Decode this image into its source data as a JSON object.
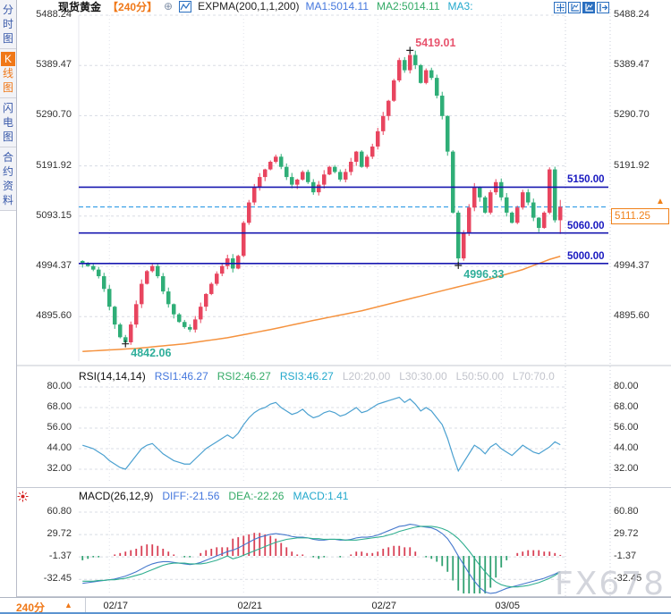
{
  "header": {
    "symbol": "现货黄金",
    "period": "【240分】",
    "indicator": "EXPMA(200,1,1,200)",
    "ma_labels": [
      {
        "text": "MA1:5014.11",
        "color": "#4477dd"
      },
      {
        "text": "MA2:5014.11",
        "color": "#33aa66"
      },
      {
        "text": "MA3:",
        "color": "#22a8cc"
      }
    ]
  },
  "icons": {
    "add_indicator": "⊕",
    "period_arrow": "▲",
    "price_arrow": "▲"
  },
  "sidebar": {
    "tabs": [
      {
        "label": "分时图",
        "active": false
      },
      {
        "label": "K线图",
        "active": true
      },
      {
        "label": "闪电图",
        "active": false
      },
      {
        "label": "合约资料",
        "active": false
      }
    ]
  },
  "x_axis": {
    "period_label": "240分",
    "dates": [
      "02/17",
      "02/21",
      "02/27",
      "03/05"
    ],
    "date_indices": [
      5,
      30,
      55,
      78
    ]
  },
  "watermark": "FX678",
  "chart_data": {
    "type": "candlestick+indicators",
    "main": {
      "y_axis": [
        "5488.24",
        "5389.47",
        "5290.70",
        "5191.92",
        "5093.15",
        "4994.37",
        "4895.60"
      ],
      "price_lines": [
        {
          "label": "5150.00",
          "value": 5150.0
        },
        {
          "label": "5060.00",
          "value": 5060.0
        },
        {
          "label": "5000.00",
          "value": 5000.0
        }
      ],
      "current_price": {
        "label": "5111.25",
        "value": 5111.25
      },
      "annotations": [
        {
          "text": "5419.01",
          "value": 5419.01,
          "index": 61,
          "pos": "high",
          "color": "#e8546e"
        },
        {
          "text": "4996.33",
          "value": 4996.33,
          "index": 70,
          "pos": "low",
          "color": "#2fae9a"
        },
        {
          "text": "4842.06",
          "value": 4842.06,
          "index": 8,
          "pos": "low",
          "color": "#2fae9a"
        }
      ],
      "first_open": 5005,
      "closes": [
        5000,
        4995,
        4988,
        4975,
        4950,
        4915,
        4880,
        4855,
        4845,
        4880,
        4920,
        4960,
        4985,
        4995,
        4975,
        4945,
        4920,
        4900,
        4885,
        4875,
        4870,
        4890,
        4915,
        4940,
        4960,
        4980,
        4995,
        5010,
        4990,
        5015,
        5080,
        5120,
        5150,
        5170,
        5185,
        5200,
        5210,
        5190,
        5170,
        5155,
        5165,
        5180,
        5160,
        5140,
        5155,
        5175,
        5190,
        5180,
        5165,
        5180,
        5200,
        5220,
        5190,
        5210,
        5230,
        5260,
        5290,
        5320,
        5360,
        5400,
        5380,
        5410,
        5390,
        5355,
        5380,
        5365,
        5330,
        5290,
        5220,
        5100,
        5010,
        5060,
        5110,
        5150,
        5130,
        5100,
        5140,
        5160,
        5130,
        5100,
        5080,
        5110,
        5140,
        5120,
        5090,
        5070,
        5100,
        5185,
        5085,
        5111.25
      ],
      "special_high": {
        "61": 5419.01,
        "89": 5125
      },
      "special_low": {
        "8": 4842.06,
        "70": 4996.33,
        "89": 5058
      },
      "expma_anchors": [
        [
          0,
          4827
        ],
        [
          10,
          4833
        ],
        [
          19,
          4842
        ],
        [
          27,
          4854
        ],
        [
          35,
          4870
        ],
        [
          43,
          4888
        ],
        [
          52,
          4907
        ],
        [
          60,
          4928
        ],
        [
          68,
          4949
        ],
        [
          75,
          4967
        ],
        [
          78,
          4976
        ],
        [
          82,
          4988
        ],
        [
          85,
          5000
        ],
        [
          87,
          5008
        ],
        [
          89,
          5014.11
        ]
      ]
    },
    "rsi": {
      "title": "RSI(14,14,14)",
      "labels": [
        {
          "text": "RSI1:46.27",
          "color": "#4477dd"
        },
        {
          "text": "RSI2:46.27",
          "color": "#33aa66"
        },
        {
          "text": "RSI3:46.27",
          "color": "#22a8cc"
        },
        {
          "text": "L20:20.00",
          "color": "#c2c4cc"
        },
        {
          "text": "L30:30.00",
          "color": "#c2c4cc"
        },
        {
          "text": "L50:50.00",
          "color": "#c2c4cc"
        },
        {
          "text": "L70:70.0",
          "color": "#c2c4cc"
        }
      ],
      "y_axis": [
        "80.00",
        "68.00",
        "56.00",
        "44.00",
        "32.00"
      ],
      "values": [
        46,
        45,
        44,
        42,
        40,
        37,
        35,
        33,
        32,
        36,
        40,
        44,
        46,
        47,
        44,
        41,
        39,
        37,
        36,
        35,
        35,
        38,
        41,
        44,
        46,
        48,
        50,
        52,
        50,
        53,
        58,
        62,
        65,
        67,
        68,
        70,
        71,
        68,
        66,
        64,
        65,
        67,
        64,
        62,
        63,
        65,
        66,
        65,
        63,
        64,
        66,
        68,
        65,
        66,
        68,
        70,
        71,
        72,
        73,
        74,
        71,
        73,
        70,
        66,
        68,
        66,
        62,
        58,
        50,
        40,
        31,
        36,
        41,
        46,
        44,
        41,
        45,
        47,
        44,
        42,
        40,
        43,
        46,
        44,
        42,
        41,
        43,
        45,
        48,
        46.27
      ]
    },
    "macd": {
      "title": "MACD(26,12,9)",
      "labels": [
        {
          "text": "DIFF:-21.56",
          "color": "#4477dd"
        },
        {
          "text": "DEA:-22.26",
          "color": "#33aa66"
        },
        {
          "text": "MACD:1.41",
          "color": "#22a8cc"
        }
      ],
      "y_axis": [
        "60.80",
        "29.72",
        "-1.37",
        "-32.45"
      ],
      "diff": [
        -38,
        -37,
        -36,
        -35,
        -34,
        -33,
        -32,
        -30,
        -28,
        -25,
        -22,
        -18,
        -14,
        -11,
        -9,
        -8,
        -8,
        -9,
        -10,
        -11,
        -12,
        -11,
        -9,
        -6,
        -3,
        0,
        3,
        6,
        8,
        11,
        15,
        19,
        23,
        26,
        28,
        30,
        31,
        30,
        29,
        27,
        26,
        26,
        25,
        23,
        22,
        22,
        23,
        23,
        22,
        22,
        23,
        25,
        26,
        26,
        27,
        29,
        32,
        35,
        38,
        41,
        42,
        44,
        43,
        41,
        40,
        39,
        36,
        31,
        24,
        13,
        0,
        -12,
        -24,
        -35,
        -44,
        -50,
        -52,
        -51,
        -48,
        -45,
        -43,
        -41,
        -39,
        -37,
        -35,
        -33,
        -31,
        -28,
        -25,
        -21.56
      ],
      "dea": [
        -35,
        -35,
        -35,
        -34,
        -34,
        -33,
        -33,
        -32,
        -31,
        -29,
        -27,
        -25,
        -22,
        -19,
        -16,
        -13,
        -11,
        -10,
        -10,
        -10,
        -11,
        -11,
        -11,
        -10,
        -8,
        -6,
        -3,
        0,
        -4,
        -2,
        1,
        4,
        7,
        10,
        13,
        16,
        19,
        21,
        23,
        24,
        25,
        25,
        25,
        24,
        24,
        23,
        23,
        23,
        23,
        22,
        22,
        22,
        23,
        24,
        25,
        26,
        27,
        29,
        31,
        34,
        36,
        38,
        40,
        41,
        41,
        41,
        40,
        38,
        35,
        30,
        24,
        16,
        7,
        -3,
        -13,
        -22,
        -30,
        -36,
        -40,
        -42,
        -43,
        -43,
        -42,
        -41,
        -39,
        -37,
        -34,
        -31,
        -27,
        -22.26
      ]
    }
  },
  "colors": {
    "up": "#e8455f",
    "down": "#2fae77",
    "expma": "#f5923e",
    "navy_line": "#1818b0",
    "current_dash": "#3aa0e8",
    "accent": "#f07818",
    "rsi_line": "#4aa0d0",
    "diff_line": "#4477cc",
    "dea_line": "#2fae8f",
    "hist_up": "#d84055",
    "hist_down": "#2fa070",
    "grid": "#d8dce4",
    "toolbar_blue": "#2a6fc0"
  }
}
